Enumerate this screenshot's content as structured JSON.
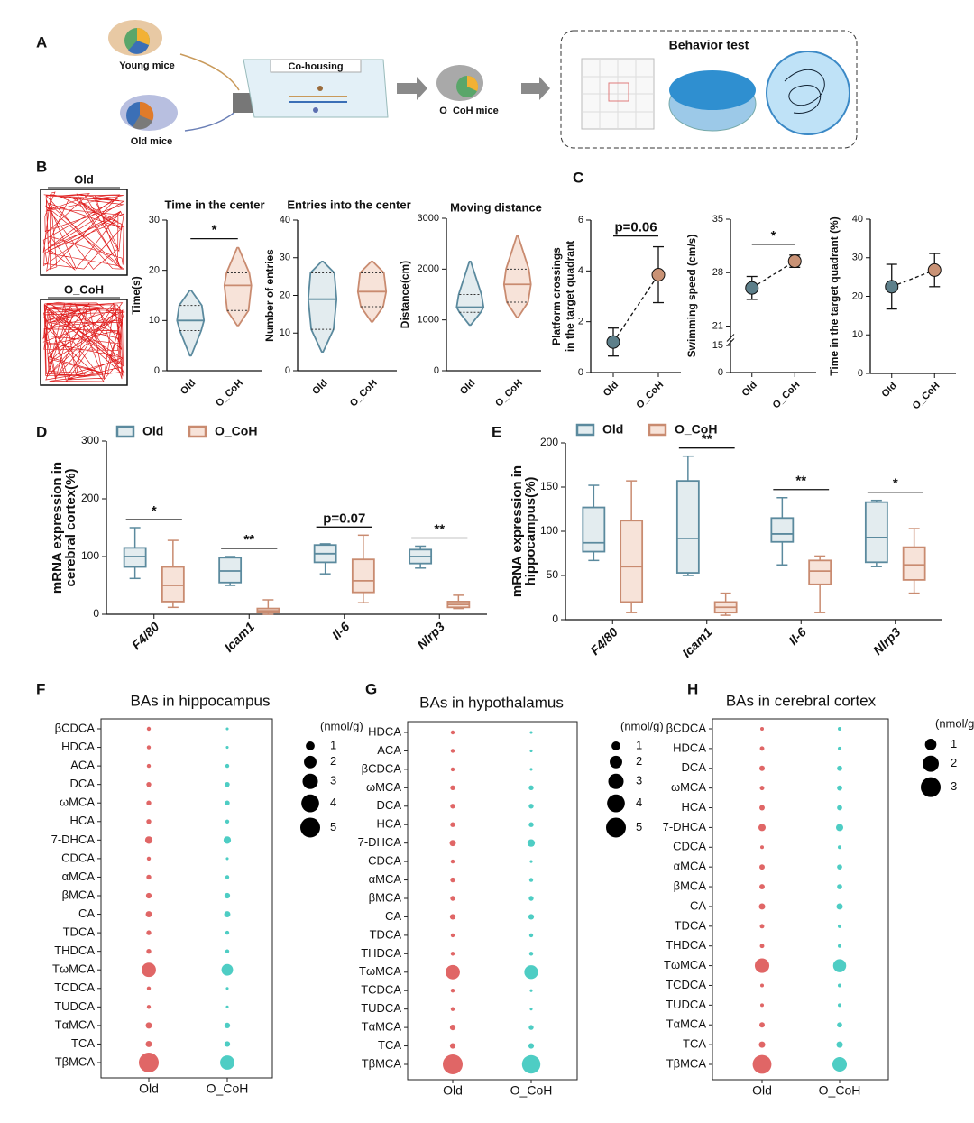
{
  "diagram": {
    "label": "A",
    "young": "Young mice",
    "old": "Old mice",
    "cohousing": "Co-housing",
    "ocoh": "O_CoH mice",
    "behavior": "Behavior test"
  },
  "open_field": {
    "panel": "B",
    "labels": [
      "Old",
      "O_CoH"
    ]
  },
  "chart_data": [
    {
      "type": "violin",
      "title": "Time in the center",
      "ylabel": "Time(s)",
      "categories": [
        "Old",
        "O_CoH"
      ],
      "colors": [
        "#5b8a9e",
        "#c98b70"
      ],
      "fills": [
        "#e3ecef",
        "#f7e3d9"
      ],
      "stats": [
        {
          "min": 3,
          "q1": 8,
          "median": 10,
          "q3": 13,
          "max": 16
        },
        {
          "min": 9,
          "q1": 12,
          "median": 17,
          "q3": 19.5,
          "max": 24.5
        }
      ],
      "annotation": "*",
      "ylim": [
        0,
        30
      ],
      "yticks": [
        0,
        10,
        20,
        30
      ]
    },
    {
      "type": "violin",
      "title": "Entries into the center",
      "ylabel": "Number of entries",
      "categories": [
        "Old",
        "O_CoH"
      ],
      "colors": [
        "#5b8a9e",
        "#c98b70"
      ],
      "fills": [
        "#e3ecef",
        "#f7e3d9"
      ],
      "stats": [
        {
          "min": 5,
          "q1": 11,
          "median": 19,
          "q3": 26,
          "max": 29
        },
        {
          "min": 13,
          "q1": 17,
          "median": 21,
          "q3": 26,
          "max": 29
        }
      ],
      "ylim": [
        0,
        40
      ],
      "yticks": [
        0,
        10,
        20,
        30,
        40
      ]
    },
    {
      "type": "violin",
      "title": "Moving distance",
      "ylabel": "Distance(cm)",
      "categories": [
        "Old",
        "O_CoH"
      ],
      "colors": [
        "#5b8a9e",
        "#c98b70"
      ],
      "fills": [
        "#e3ecef",
        "#f7e3d9"
      ],
      "stats": [
        {
          "min": 900,
          "q1": 1150,
          "median": 1250,
          "q3": 1500,
          "max": 2150
        },
        {
          "min": 1050,
          "q1": 1350,
          "median": 1700,
          "q3": 2000,
          "max": 2650
        }
      ],
      "ylim": [
        0,
        3000
      ],
      "yticks": [
        0,
        1000,
        2000,
        3000
      ]
    },
    {
      "type": "errorbar",
      "panel": "C",
      "ylabel": [
        "Platform crossings",
        "in the target quadrant"
      ],
      "categories": [
        "Old",
        "O_CoH"
      ],
      "colors": [
        "#5d7f8a",
        "#c99275"
      ],
      "values": [
        1.2,
        3.85
      ],
      "errors": [
        0.55,
        1.1
      ],
      "annotation": "p=0.06",
      "ylim": [
        0,
        6
      ],
      "yticks": [
        0,
        2,
        4,
        6
      ]
    },
    {
      "type": "errorbar",
      "ylabel": "Swimming speed (cm/s)",
      "categories": [
        "Old",
        "O_CoH"
      ],
      "colors": [
        "#5d7f8a",
        "#c99275"
      ],
      "values": [
        26,
        29.5
      ],
      "errors": [
        1.5,
        0.8
      ],
      "annotation": "*",
      "ylim": [
        0,
        35
      ],
      "ybreak": [
        15,
        20
      ],
      "yticks": [
        0,
        15,
        21,
        28,
        35
      ]
    },
    {
      "type": "errorbar",
      "ylabel": "Time in the target quadrant (%)",
      "categories": [
        "Old",
        "O_CoH"
      ],
      "colors": [
        "#5d7f8a",
        "#c99275"
      ],
      "values": [
        22.5,
        26.8
      ],
      "errors": [
        5.8,
        4.3
      ],
      "ylim": [
        0,
        40
      ],
      "yticks": [
        0,
        10,
        20,
        30,
        40
      ]
    },
    {
      "type": "box",
      "panel": "D",
      "ylabel": [
        "mRNA expression in",
        "cerebral cortex(%)"
      ],
      "categories": [
        "F4/80",
        "Icam1",
        "Il-6",
        "Nlrp3"
      ],
      "series": [
        {
          "name": "Old",
          "color": "#5b8a9e",
          "fill": "#e3ecef",
          "boxes": [
            {
              "min": 62,
              "q1": 82,
              "median": 100,
              "q3": 115,
              "max": 150
            },
            {
              "min": 50,
              "q1": 55,
              "median": 75,
              "q3": 98,
              "max": 100
            },
            {
              "min": 70,
              "q1": 90,
              "median": 105,
              "q3": 120,
              "max": 122
            },
            {
              "min": 80,
              "q1": 88,
              "median": 100,
              "q3": 112,
              "max": 118
            }
          ]
        },
        {
          "name": "O_CoH",
          "color": "#c98b70",
          "fill": "#f7e3d9",
          "boxes": [
            {
              "min": 12,
              "q1": 22,
              "median": 50,
              "q3": 82,
              "max": 128
            },
            {
              "min": 0,
              "q1": 3,
              "median": 6,
              "q3": 10,
              "max": 25
            },
            {
              "min": 20,
              "q1": 38,
              "median": 58,
              "q3": 95,
              "max": 137
            },
            {
              "min": 10,
              "q1": 12,
              "median": 17,
              "q3": 22,
              "max": 33
            }
          ]
        }
      ],
      "annotations": [
        "*",
        "**",
        "p=0.07",
        "**"
      ],
      "ylim": [
        0,
        300
      ],
      "yticks": [
        0,
        100,
        200,
        300
      ]
    },
    {
      "type": "box",
      "panel": "E",
      "ylabel": [
        "mRNA expression in",
        "hippocampus(%)"
      ],
      "categories": [
        "F4/80",
        "Icam1",
        "Il-6",
        "Nlrp3"
      ],
      "series": [
        {
          "name": "Old",
          "color": "#5b8a9e",
          "fill": "#e3ecef",
          "boxes": [
            {
              "min": 67,
              "q1": 77,
              "median": 87,
              "q3": 127,
              "max": 152
            },
            {
              "min": 50,
              "q1": 53,
              "median": 92,
              "q3": 157,
              "max": 185
            },
            {
              "min": 62,
              "q1": 88,
              "median": 97,
              "q3": 115,
              "max": 138
            },
            {
              "min": 60,
              "q1": 65,
              "median": 93,
              "q3": 133,
              "max": 135
            }
          ]
        },
        {
          "name": "O_CoH",
          "color": "#c98b70",
          "fill": "#f7e3d9",
          "boxes": [
            {
              "min": 8,
              "q1": 20,
              "median": 60,
              "q3": 112,
              "max": 157
            },
            {
              "min": 5,
              "q1": 8,
              "median": 14,
              "q3": 20,
              "max": 30
            },
            {
              "min": 8,
              "q1": 40,
              "median": 55,
              "q3": 67,
              "max": 72
            },
            {
              "min": 30,
              "q1": 45,
              "median": 62,
              "q3": 82,
              "max": 103
            }
          ]
        }
      ],
      "annotations": [
        null,
        "**",
        "**",
        "*"
      ],
      "ylim": [
        0,
        200
      ],
      "yticks": [
        0,
        50,
        100,
        150,
        200
      ]
    },
    {
      "type": "bubble",
      "panel": "F",
      "title": "BAs in hippocampus",
      "categories": [
        "βCDCA",
        "HDCA",
        "ACA",
        "DCA",
        "ωMCA",
        "HCA",
        "7-DHCA",
        "CDCA",
        "αMCA",
        "βMCA",
        "CA",
        "TDCA",
        "THDCA",
        "TωMCA",
        "TCDCA",
        "TUDCA",
        "TαMCA",
        "TCA",
        "TβMCA"
      ],
      "series": [
        {
          "name": "Old",
          "color": "#e06666",
          "values": [
            0.2,
            0.2,
            0.2,
            0.3,
            0.3,
            0.3,
            0.7,
            0.2,
            0.3,
            0.4,
            0.5,
            0.3,
            0.3,
            2.6,
            0.2,
            0.2,
            0.5,
            0.5,
            5.0
          ]
        },
        {
          "name": "O_CoH",
          "color": "#4ecdc4",
          "values": [
            0.1,
            0.1,
            0.2,
            0.3,
            0.3,
            0.2,
            0.7,
            0.1,
            0.2,
            0.4,
            0.5,
            0.2,
            0.2,
            1.7,
            0.1,
            0.1,
            0.4,
            0.4,
            2.6
          ]
        }
      ],
      "size_legend_title": "(nmol/g)",
      "size_legend": [
        1,
        2,
        3,
        4,
        5
      ]
    },
    {
      "type": "bubble",
      "panel": "G",
      "title": "BAs in hypothalamus",
      "categories": [
        "HDCA",
        "ACA",
        "βCDCA",
        "ωMCA",
        "DCA",
        "HCA",
        "7-DHCA",
        "CDCA",
        "αMCA",
        "βMCA",
        "CA",
        "TDCA",
        "THDCA",
        "TωMCA",
        "TCDCA",
        "TUDCA",
        "TαMCA",
        "TCA",
        "TβMCA"
      ],
      "series": [
        {
          "name": "Old",
          "color": "#e06666",
          "values": [
            0.2,
            0.2,
            0.2,
            0.3,
            0.3,
            0.3,
            0.5,
            0.2,
            0.3,
            0.3,
            0.4,
            0.2,
            0.2,
            2.6,
            0.2,
            0.2,
            0.4,
            0.4,
            5.0
          ]
        },
        {
          "name": "O_CoH",
          "color": "#4ecdc4",
          "values": [
            0.1,
            0.1,
            0.1,
            0.3,
            0.3,
            0.3,
            0.7,
            0.1,
            0.2,
            0.3,
            0.4,
            0.2,
            0.2,
            2.4,
            0.1,
            0.1,
            0.3,
            0.4,
            4.3
          ]
        }
      ],
      "size_legend_title": "(nmol/g)",
      "size_legend": [
        1,
        2,
        3,
        4,
        5
      ]
    },
    {
      "type": "bubble",
      "panel": "H",
      "title": "BAs in cerebral cortex",
      "categories": [
        "βCDCA",
        "HDCA",
        "DCA",
        "ωMCA",
        "HCA",
        "7-DHCA",
        "CDCA",
        "αMCA",
        "βMCA",
        "CA",
        "TDCA",
        "THDCA",
        "TωMCA",
        "TCDCA",
        "TUDCA",
        "TαMCA",
        "TCA",
        "TβMCA"
      ],
      "series": [
        {
          "name": "Old",
          "color": "#e06666",
          "values": [
            0.1,
            0.15,
            0.22,
            0.15,
            0.22,
            0.4,
            0.1,
            0.22,
            0.22,
            0.3,
            0.15,
            0.15,
            1.6,
            0.1,
            0.1,
            0.22,
            0.3,
            2.7
          ]
        },
        {
          "name": "O_CoH",
          "color": "#4ecdc4",
          "values": [
            0.1,
            0.1,
            0.2,
            0.2,
            0.2,
            0.4,
            0.1,
            0.2,
            0.2,
            0.3,
            0.1,
            0.1,
            1.3,
            0.1,
            0.1,
            0.2,
            0.3,
            1.6
          ]
        }
      ],
      "size_legend_title": "(nmol/g)",
      "size_legend": [
        1,
        2,
        3
      ]
    }
  ]
}
